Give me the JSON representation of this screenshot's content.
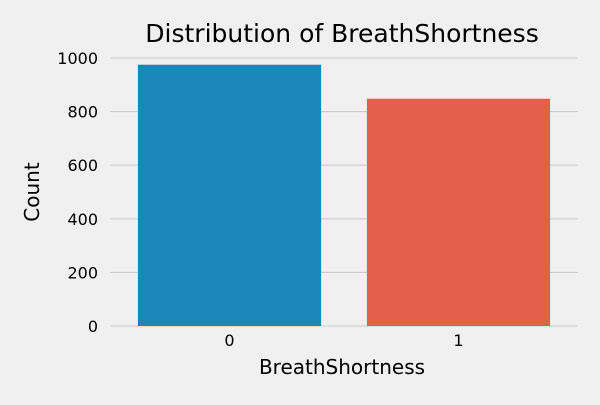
{
  "chart_data": {
    "type": "bar",
    "title": "Distribution of BreathShortness",
    "xlabel": "BreathShortness",
    "ylabel": "Count",
    "categories": [
      "0",
      "1"
    ],
    "values": [
      975,
      848
    ],
    "colors": [
      "#1a86ba",
      "#e5604b"
    ],
    "ylim": [
      0,
      1000
    ],
    "yticks": [
      0,
      200,
      400,
      600,
      800,
      1000
    ],
    "grid": "horizontal",
    "background_color": "#f0f0f0",
    "grid_color": "#cbcbcb"
  }
}
